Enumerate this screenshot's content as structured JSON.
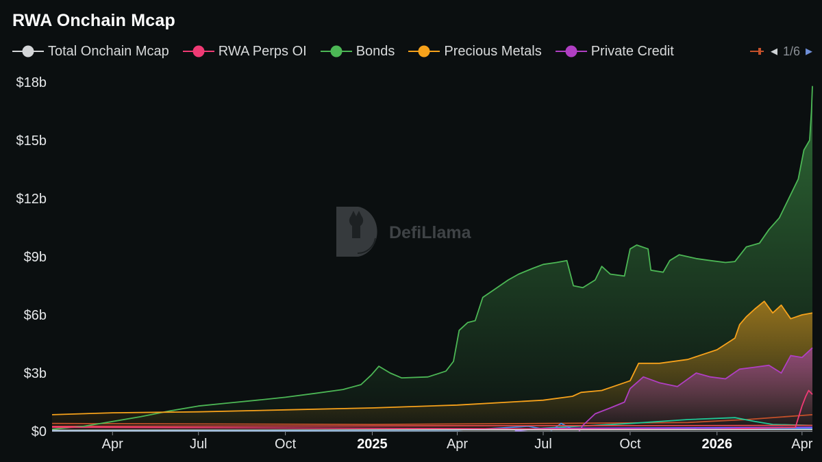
{
  "title": "RWA Onchain Mcap",
  "legend": [
    {
      "name": "Total Onchain Mcap",
      "color": "#d4d6d8"
    },
    {
      "name": "RWA Perps OI",
      "color": "#ef3a74"
    },
    {
      "name": "Bonds",
      "color": "#4cb755"
    },
    {
      "name": "Precious Metals",
      "color": "#f7a21b"
    },
    {
      "name": "Private Credit",
      "color": "#b03fc3"
    }
  ],
  "legend_pager": {
    "prev_icon": "triangle-left-icon",
    "text": "1/6",
    "next_icon": "triangle-right-icon",
    "partial_item_color": "#c4502a"
  },
  "watermark": {
    "text": "DefiLlama",
    "icon": "llama-logo-icon"
  },
  "chart_data": {
    "type": "area",
    "title": "RWA Onchain Mcap",
    "xlabel": "",
    "ylabel": "",
    "x_range": [
      "2024-01-28",
      "2026-04-12"
    ],
    "ylim": [
      0,
      18
    ],
    "y_unit": "$b",
    "y_ticks": [
      {
        "value": 0,
        "label": "$0"
      },
      {
        "value": 3,
        "label": "$3b"
      },
      {
        "value": 6,
        "label": "$6b"
      },
      {
        "value": 9,
        "label": "$9b"
      },
      {
        "value": 12,
        "label": "$12b"
      },
      {
        "value": 15,
        "label": "$15b"
      },
      {
        "value": 18,
        "label": "$18b"
      }
    ],
    "x_ticks": [
      {
        "date": "2024-04-01",
        "label": "Apr",
        "bold": false
      },
      {
        "date": "2024-07-01",
        "label": "Jul",
        "bold": false
      },
      {
        "date": "2024-10-01",
        "label": "Oct",
        "bold": false
      },
      {
        "date": "2025-01-01",
        "label": "2025",
        "bold": true
      },
      {
        "date": "2025-04-01",
        "label": "Apr",
        "bold": false
      },
      {
        "date": "2025-07-01",
        "label": "Jul",
        "bold": false
      },
      {
        "date": "2025-10-01",
        "label": "Oct",
        "bold": false
      },
      {
        "date": "2026-01-01",
        "label": "2026",
        "bold": true
      },
      {
        "date": "2026-04-01",
        "label": "Apr",
        "bold": false
      }
    ],
    "grid": false,
    "legend_position": "top",
    "series": [
      {
        "name": "Bonds",
        "color": "#4cb755",
        "fill": true,
        "points": [
          [
            "2024-01-28",
            0.1
          ],
          [
            "2024-03-01",
            0.25
          ],
          [
            "2024-04-01",
            0.5
          ],
          [
            "2024-05-01",
            0.75
          ],
          [
            "2024-06-01",
            1.05
          ],
          [
            "2024-07-01",
            1.3
          ],
          [
            "2024-08-01",
            1.45
          ],
          [
            "2024-09-01",
            1.6
          ],
          [
            "2024-10-01",
            1.75
          ],
          [
            "2024-11-01",
            1.95
          ],
          [
            "2024-12-01",
            2.15
          ],
          [
            "2024-12-20",
            2.4
          ],
          [
            "2024-12-31",
            2.9
          ],
          [
            "2025-01-08",
            3.35
          ],
          [
            "2025-01-20",
            3.0
          ],
          [
            "2025-02-01",
            2.75
          ],
          [
            "2025-03-01",
            2.8
          ],
          [
            "2025-03-20",
            3.1
          ],
          [
            "2025-03-28",
            3.6
          ],
          [
            "2025-04-03",
            5.2
          ],
          [
            "2025-04-12",
            5.6
          ],
          [
            "2025-04-20",
            5.7
          ],
          [
            "2025-04-28",
            6.9
          ],
          [
            "2025-05-10",
            7.3
          ],
          [
            "2025-05-25",
            7.8
          ],
          [
            "2025-06-05",
            8.1
          ],
          [
            "2025-06-20",
            8.4
          ],
          [
            "2025-07-01",
            8.6
          ],
          [
            "2025-07-15",
            8.7
          ],
          [
            "2025-07-26",
            8.8
          ],
          [
            "2025-08-02",
            7.5
          ],
          [
            "2025-08-12",
            7.4
          ],
          [
            "2025-08-25",
            7.8
          ],
          [
            "2025-09-01",
            8.5
          ],
          [
            "2025-09-10",
            8.1
          ],
          [
            "2025-09-25",
            8.0
          ],
          [
            "2025-10-01",
            9.4
          ],
          [
            "2025-10-08",
            9.6
          ],
          [
            "2025-10-20",
            9.4
          ],
          [
            "2025-10-23",
            8.3
          ],
          [
            "2025-11-05",
            8.2
          ],
          [
            "2025-11-12",
            8.8
          ],
          [
            "2025-11-22",
            9.1
          ],
          [
            "2025-12-10",
            8.9
          ],
          [
            "2025-12-25",
            8.8
          ],
          [
            "2026-01-10",
            8.7
          ],
          [
            "2026-01-20",
            8.75
          ],
          [
            "2026-02-01",
            9.5
          ],
          [
            "2026-02-15",
            9.7
          ],
          [
            "2026-02-25",
            10.4
          ],
          [
            "2026-03-08",
            11.0
          ],
          [
            "2026-03-18",
            12.0
          ],
          [
            "2026-03-28",
            13.0
          ],
          [
            "2026-04-03",
            14.5
          ],
          [
            "2026-04-09",
            15.0
          ],
          [
            "2026-04-11",
            16.5
          ],
          [
            "2026-04-12",
            17.8
          ]
        ]
      },
      {
        "name": "Precious Metals",
        "color": "#f7a21b",
        "fill": true,
        "points": [
          [
            "2024-01-28",
            0.85
          ],
          [
            "2024-04-01",
            0.95
          ],
          [
            "2024-07-01",
            1.0
          ],
          [
            "2024-10-01",
            1.1
          ],
          [
            "2025-01-01",
            1.2
          ],
          [
            "2025-04-01",
            1.35
          ],
          [
            "2025-07-01",
            1.6
          ],
          [
            "2025-08-01",
            1.8
          ],
          [
            "2025-08-10",
            2.0
          ],
          [
            "2025-09-01",
            2.1
          ],
          [
            "2025-10-01",
            2.6
          ],
          [
            "2025-10-10",
            3.5
          ],
          [
            "2025-11-01",
            3.5
          ],
          [
            "2025-12-01",
            3.7
          ],
          [
            "2026-01-01",
            4.2
          ],
          [
            "2026-01-20",
            4.8
          ],
          [
            "2026-01-25",
            5.5
          ],
          [
            "2026-02-01",
            5.9
          ],
          [
            "2026-02-10",
            6.3
          ],
          [
            "2026-02-20",
            6.7
          ],
          [
            "2026-03-01",
            6.1
          ],
          [
            "2026-03-10",
            6.5
          ],
          [
            "2026-03-20",
            5.8
          ],
          [
            "2026-04-01",
            6.0
          ],
          [
            "2026-04-12",
            6.1
          ]
        ]
      },
      {
        "name": "Private Credit",
        "color": "#b03fc3",
        "fill": true,
        "points": [
          [
            "2025-08-08",
            0.0
          ],
          [
            "2025-08-12",
            0.3
          ],
          [
            "2025-08-25",
            0.9
          ],
          [
            "2025-09-10",
            1.2
          ],
          [
            "2025-09-25",
            1.5
          ],
          [
            "2025-10-01",
            2.2
          ],
          [
            "2025-10-15",
            2.8
          ],
          [
            "2025-11-01",
            2.5
          ],
          [
            "2025-11-20",
            2.3
          ],
          [
            "2025-12-10",
            3.0
          ],
          [
            "2025-12-25",
            2.8
          ],
          [
            "2026-01-10",
            2.7
          ],
          [
            "2026-01-25",
            3.2
          ],
          [
            "2026-02-10",
            3.3
          ],
          [
            "2026-02-25",
            3.4
          ],
          [
            "2026-03-10",
            3.0
          ],
          [
            "2026-03-20",
            3.9
          ],
          [
            "2026-04-01",
            3.8
          ],
          [
            "2026-04-12",
            4.3
          ]
        ]
      },
      {
        "name": "RWA Perps OI",
        "color": "#ef3a74",
        "fill": false,
        "points": [
          [
            "2024-01-28",
            0.2
          ],
          [
            "2025-01-01",
            0.15
          ],
          [
            "2026-01-01",
            0.1
          ],
          [
            "2026-03-25",
            0.2
          ],
          [
            "2026-04-01",
            1.3
          ],
          [
            "2026-04-05",
            1.8
          ],
          [
            "2026-04-08",
            2.1
          ],
          [
            "2026-04-12",
            1.9
          ]
        ]
      },
      {
        "name": "Total Onchain Mcap",
        "color": "#d4d6d8",
        "fill": false,
        "points": [
          [
            "2024-01-28",
            0.05
          ],
          [
            "2026-04-12",
            0.08
          ]
        ]
      }
    ],
    "minor_series": [
      {
        "color": "#c4502a",
        "points": [
          [
            "2024-01-28",
            0.4
          ],
          [
            "2025-01-01",
            0.35
          ],
          [
            "2025-07-01",
            0.4
          ],
          [
            "2025-12-01",
            0.45
          ],
          [
            "2026-02-01",
            0.6
          ],
          [
            "2026-04-12",
            0.85
          ]
        ]
      },
      {
        "color": "#20c997",
        "points": [
          [
            "2024-01-28",
            0.02
          ],
          [
            "2025-06-01",
            0.08
          ],
          [
            "2025-10-01",
            0.4
          ],
          [
            "2025-12-01",
            0.6
          ],
          [
            "2026-01-20",
            0.7
          ],
          [
            "2026-02-10",
            0.5
          ],
          [
            "2026-03-01",
            0.35
          ],
          [
            "2026-04-12",
            0.3
          ]
        ]
      },
      {
        "color": "#3f8fe6",
        "points": [
          [
            "2024-01-28",
            0.0
          ],
          [
            "2025-04-01",
            0.05
          ],
          [
            "2025-06-15",
            0.25
          ],
          [
            "2025-07-10",
            0.05
          ],
          [
            "2025-07-20",
            0.4
          ],
          [
            "2025-08-01",
            0.1
          ],
          [
            "2026-04-12",
            0.15
          ]
        ]
      },
      {
        "color": "#8a4fff",
        "points": [
          [
            "2025-06-01",
            0.0
          ],
          [
            "2025-07-01",
            0.15
          ],
          [
            "2026-04-12",
            0.2
          ]
        ]
      },
      {
        "color": "#e5484d",
        "points": [
          [
            "2024-01-28",
            0.25
          ],
          [
            "2026-04-12",
            0.3
          ]
        ]
      }
    ]
  }
}
